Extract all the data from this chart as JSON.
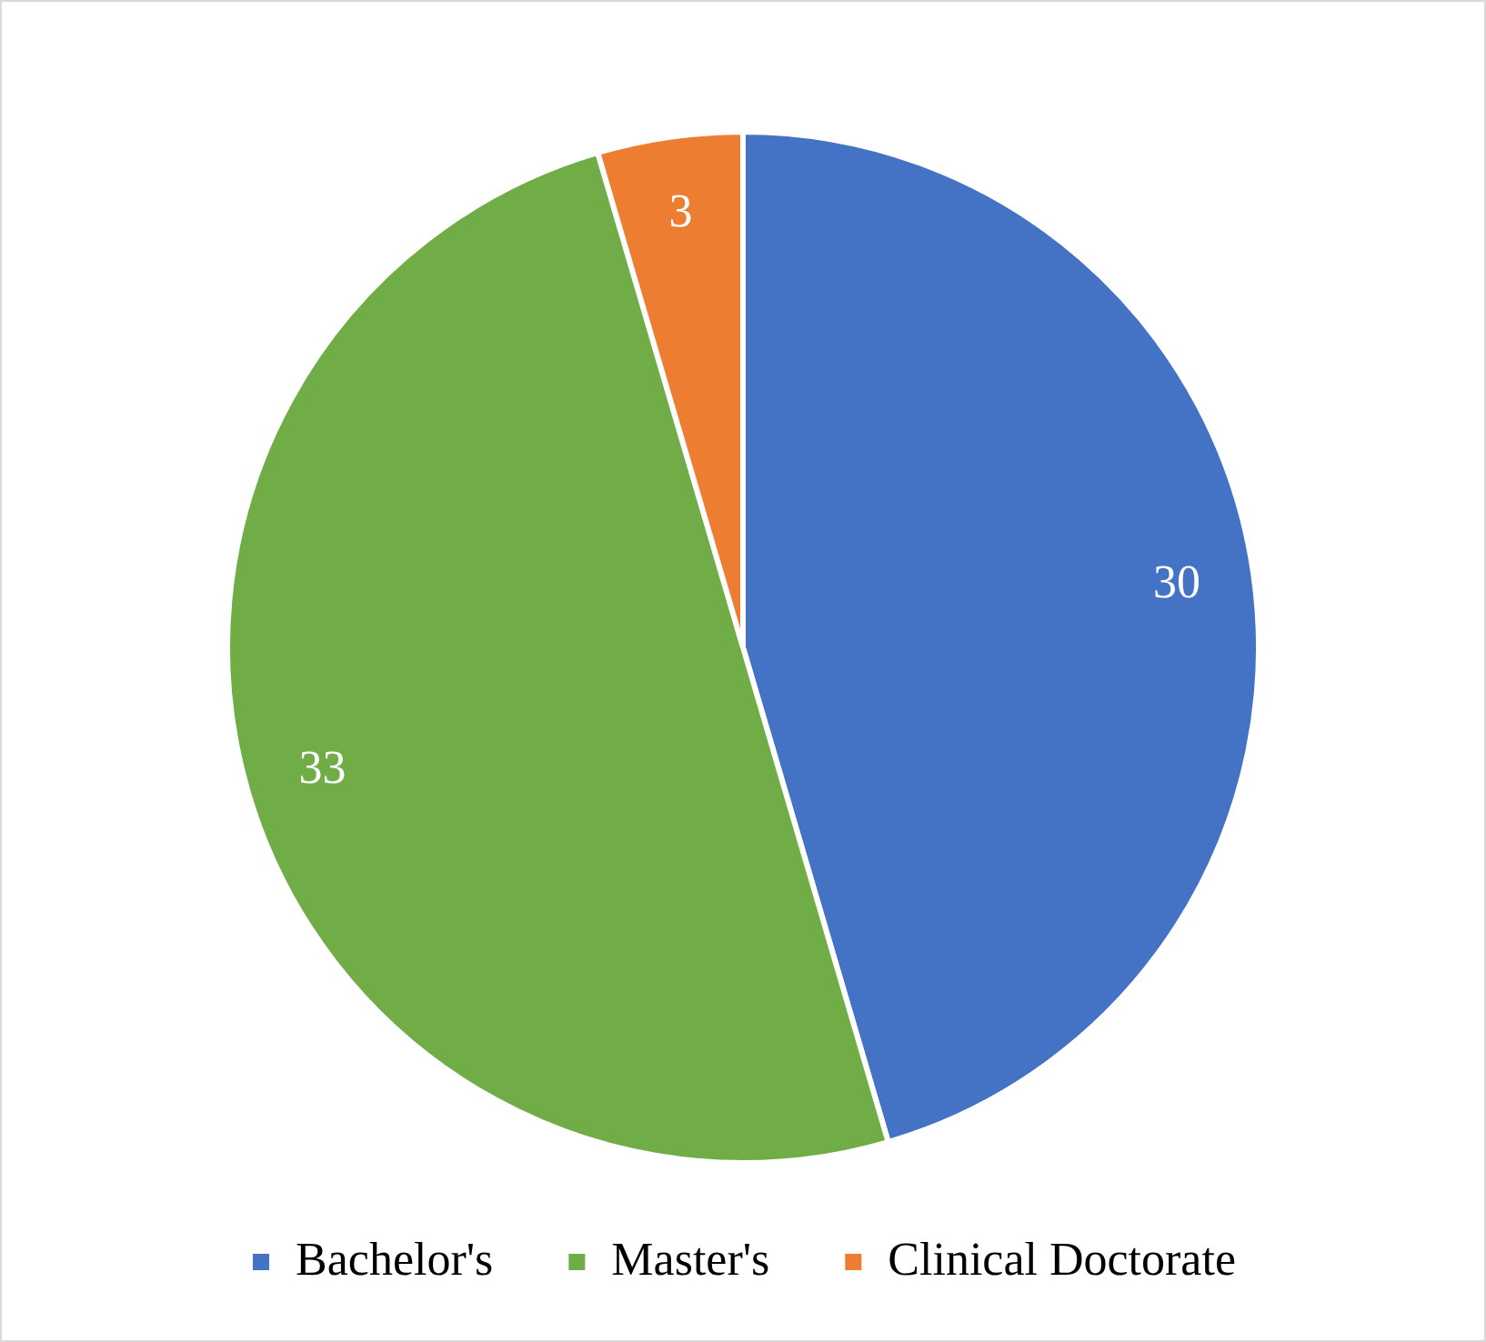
{
  "chart_data": {
    "type": "pie",
    "categories": [
      "Bachelor's",
      "Master's",
      "Clinical Doctorate"
    ],
    "values": [
      30,
      33,
      3
    ],
    "colors": [
      "#4472c4",
      "#70ad47",
      "#ed7d31"
    ],
    "data_labels": true,
    "legend": "bottom"
  }
}
